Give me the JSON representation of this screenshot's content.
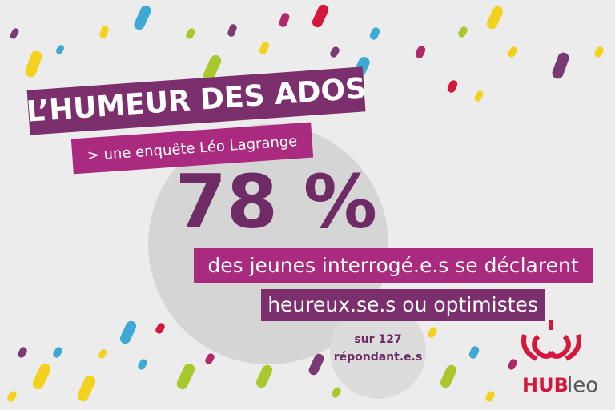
{
  "header": {
    "title": "L’HUMEUR DES ADOS",
    "subtitle": "> une enquête Léo Lagrange"
  },
  "stat": {
    "value": "78 %",
    "line1": "des jeunes interrogé.e.s se déclarent",
    "line2": "heureux.se.s ou optimistes"
  },
  "sample": {
    "line1": "sur 127",
    "line2": "répondant.e.s"
  },
  "logo": {
    "brand": "HUB",
    "name": "leo"
  }
}
